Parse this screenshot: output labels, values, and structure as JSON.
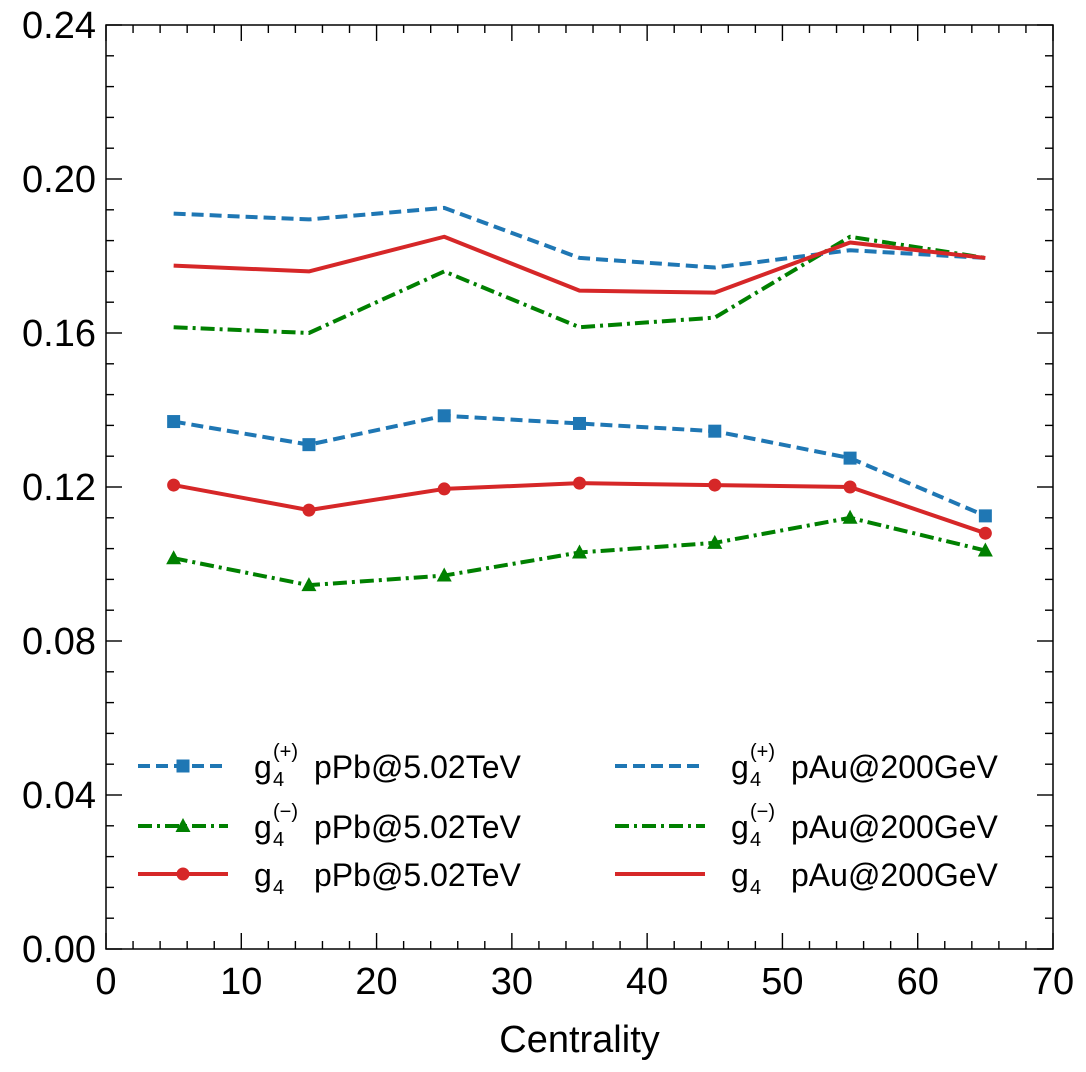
{
  "chart_data": {
    "type": "line",
    "title": "",
    "xlabel": "Centrality",
    "ylabel": "",
    "xlim": [
      0,
      70
    ],
    "ylim": [
      0,
      0.24
    ],
    "x_ticks": [
      0,
      10,
      20,
      30,
      40,
      50,
      60,
      70
    ],
    "y_ticks": [
      0.0,
      0.04,
      0.08,
      0.12,
      0.16,
      0.2,
      0.24
    ],
    "x_tick_labels": [
      "0",
      "10",
      "20",
      "30",
      "40",
      "50",
      "60",
      "70"
    ],
    "y_tick_labels": [
      "0.00",
      "0.04",
      "0.08",
      "0.12",
      "0.16",
      "0.20",
      "0.24"
    ],
    "grid": false,
    "legend_position": "lower-center",
    "x": [
      5,
      15,
      25,
      35,
      45,
      55,
      65
    ],
    "series": [
      {
        "name": "g4(+) pPb@5.02TeV",
        "symbol": "g",
        "sub": "4",
        "sup": "(+)",
        "system": "pPb@5.02TeV",
        "color": "#1f77b4",
        "dash": "dashed",
        "marker": "square",
        "values": [
          0.137,
          0.131,
          0.1385,
          0.1365,
          0.1345,
          0.1275,
          0.1125
        ]
      },
      {
        "name": "g4(-) pPb@5.02TeV",
        "symbol": "g",
        "sub": "4",
        "sup": "(−)",
        "system": "pPb@5.02TeV",
        "color": "#008000",
        "dash": "dashdot",
        "marker": "triangle",
        "values": [
          0.1015,
          0.0945,
          0.097,
          0.103,
          0.1055,
          0.112,
          0.1035
        ]
      },
      {
        "name": "g4 pPb@5.02TeV",
        "symbol": "g",
        "sub": "4",
        "sup": "",
        "system": "pPb@5.02TeV",
        "color": "#d62728",
        "dash": "solid",
        "marker": "circle",
        "values": [
          0.1205,
          0.114,
          0.1195,
          0.121,
          0.1205,
          0.12,
          0.108
        ]
      },
      {
        "name": "g4(+) pAu@200GeV",
        "symbol": "g",
        "sub": "4",
        "sup": "(+)",
        "system": "pAu@200GeV",
        "color": "#1f77b4",
        "dash": "dashed",
        "marker": "none",
        "values": [
          0.191,
          0.1895,
          0.1925,
          0.1795,
          0.177,
          0.1815,
          0.1795
        ]
      },
      {
        "name": "g4(-) pAu@200GeV",
        "symbol": "g",
        "sub": "4",
        "sup": "(−)",
        "system": "pAu@200GeV",
        "color": "#008000",
        "dash": "dashdot",
        "marker": "none",
        "values": [
          0.1615,
          0.16,
          0.176,
          0.1615,
          0.164,
          0.185,
          0.1795
        ]
      },
      {
        "name": "g4 pAu@200GeV",
        "symbol": "g",
        "sub": "4",
        "sup": "",
        "system": "pAu@200GeV",
        "color": "#d62728",
        "dash": "solid",
        "marker": "none",
        "values": [
          0.1775,
          0.176,
          0.185,
          0.171,
          0.1705,
          0.1835,
          0.1795
        ]
      }
    ]
  }
}
